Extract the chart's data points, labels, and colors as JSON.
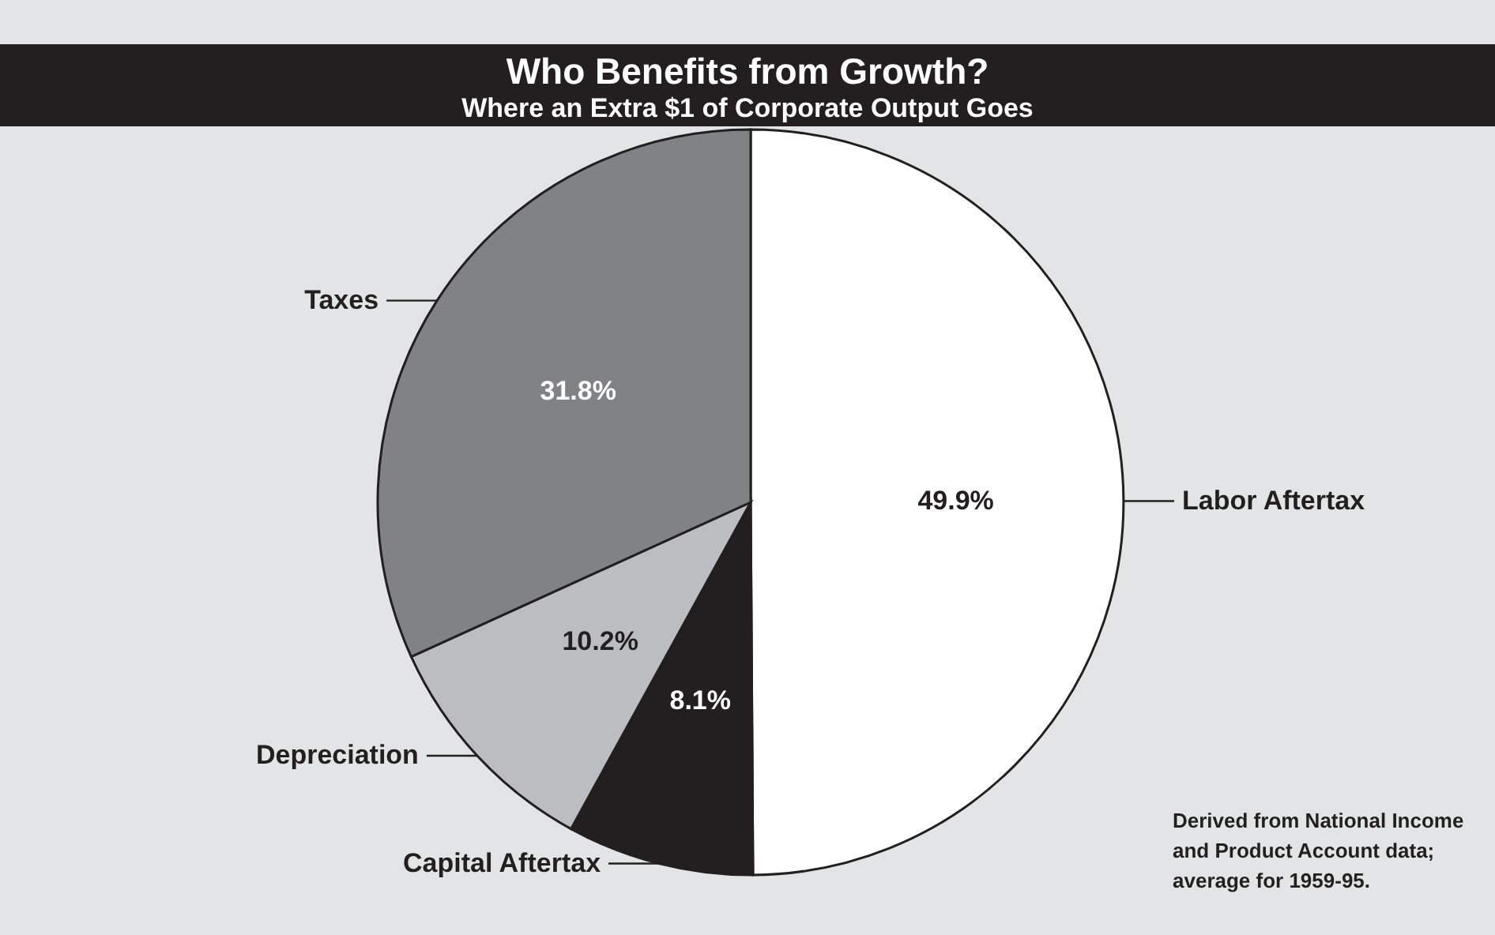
{
  "chart_data": {
    "type": "pie",
    "title": "Who Benefits from Growth?",
    "subtitle": "Where an Extra $1 of Corporate Output Goes",
    "categories": [
      "Labor Aftertax",
      "Capital Aftertax",
      "Depreciation",
      "Taxes"
    ],
    "values": [
      49.9,
      8.1,
      10.2,
      31.8
    ],
    "colors": [
      "#ffffff",
      "#231f20",
      "#bcbdc0",
      "#808285"
    ],
    "value_labels": [
      "49.9%",
      "8.1%",
      "10.2%",
      "31.8%"
    ],
    "annotations": [
      "Derived from National Income and Product Account data; average for 1959-95."
    ]
  }
}
